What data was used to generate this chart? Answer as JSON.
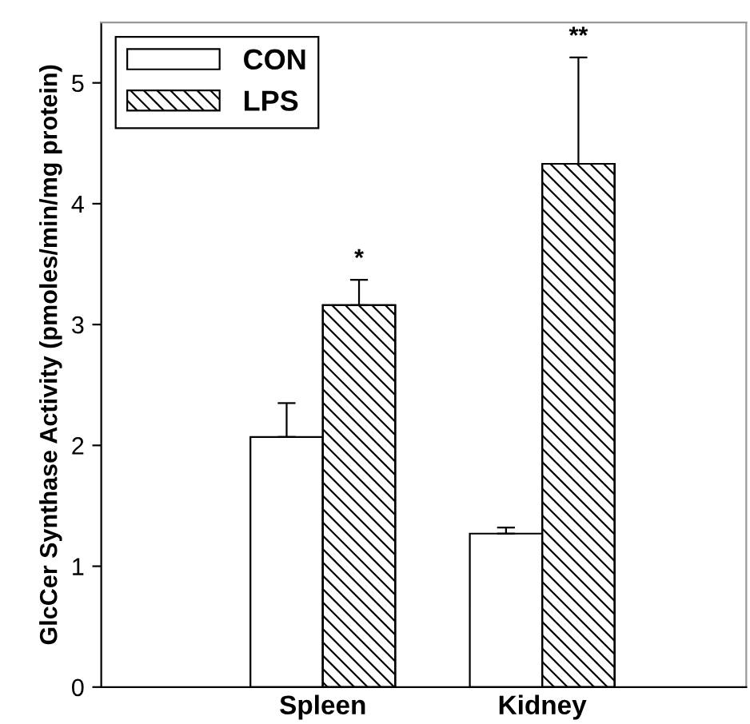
{
  "chart_data": {
    "type": "bar",
    "ylabel": "GlcCer Synthase Activity (pmoles/min/mg protein)",
    "categories": [
      "Spleen",
      "Kidney"
    ],
    "series": [
      {
        "name": "CON",
        "color": "#ffffff",
        "values": [
          2.07,
          1.27
        ],
        "errors": [
          [
            2.07,
            2.35
          ],
          [
            1.27,
            1.32
          ]
        ]
      },
      {
        "name": "LPS",
        "color": "#000000",
        "values": [
          3.16,
          4.33
        ],
        "errors": [
          [
            3.16,
            3.37
          ],
          [
            4.33,
            5.21
          ]
        ]
      }
    ],
    "annotations": [
      "*",
      "**"
    ],
    "ylim": [
      0,
      5.5
    ],
    "yticks": [
      0,
      1,
      2,
      3,
      4,
      5
    ],
    "legend": "top left"
  }
}
